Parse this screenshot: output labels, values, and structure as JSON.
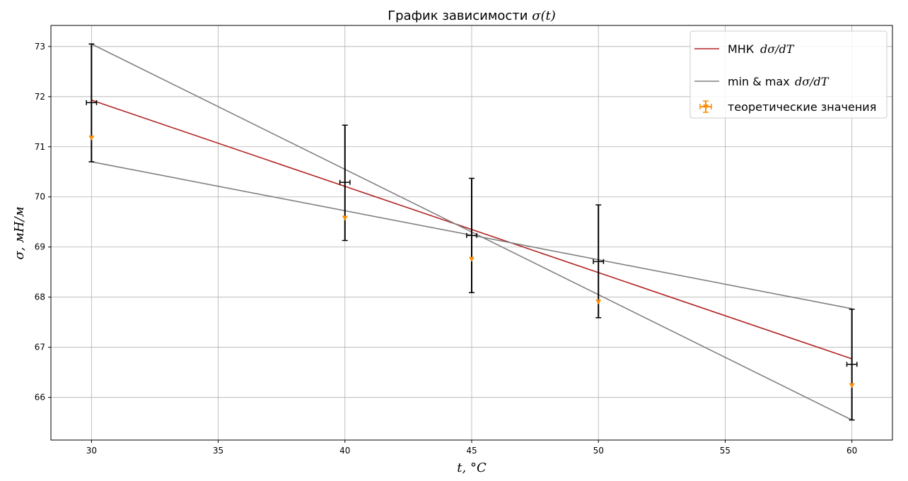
{
  "chart_data": {
    "type": "scatter",
    "title_prefix": "График зависимости ",
    "title_math": "σ(t)",
    "xlabel": "t, °C",
    "ylabel": "σ, мН/м",
    "xlim": [
      28.4,
      61.6
    ],
    "ylim": [
      65.15,
      73.42
    ],
    "x_ticks": [
      30,
      35,
      40,
      45,
      50,
      55,
      60
    ],
    "y_ticks": [
      66,
      67,
      68,
      69,
      70,
      71,
      72,
      73
    ],
    "grid": true,
    "legend_position": "top-right",
    "colors": {
      "mnk": "#b22222",
      "minmax": "#808080",
      "theory": "#ff8c00",
      "experimental": "#000000",
      "grid": "#b0b0b0"
    },
    "lines": [
      {
        "legend": "МНК",
        "legend_frac": "dσ/dT",
        "color": "#b22222",
        "points": [
          [
            30,
            71.93
          ],
          [
            60,
            66.77
          ]
        ]
      },
      {
        "legend": "min & max",
        "legend_frac": "dσ/dT",
        "color": "#808080",
        "points": [
          [
            30,
            73.05
          ],
          [
            60,
            65.55
          ]
        ]
      },
      {
        "legend": null,
        "color": "#808080",
        "points": [
          [
            30,
            70.7
          ],
          [
            60,
            67.77
          ]
        ]
      }
    ],
    "experimental": [
      {
        "x": 30,
        "y": 71.88,
        "yerr": [
          70.7,
          73.05
        ],
        "xerr": 0.2
      },
      {
        "x": 40,
        "y": 70.29,
        "yerr": [
          69.13,
          71.43
        ],
        "xerr": 0.2
      },
      {
        "x": 45,
        "y": 69.23,
        "yerr": [
          68.09,
          70.37
        ],
        "xerr": 0.2
      },
      {
        "x": 50,
        "y": 68.71,
        "yerr": [
          67.59,
          69.84
        ],
        "xerr": 0.2
      },
      {
        "x": 60,
        "y": 66.66,
        "yerr": [
          65.55,
          67.76
        ],
        "xerr": 0.2
      }
    ],
    "theoretical": {
      "legend": "теоретические значения",
      "points": [
        [
          30,
          71.18
        ],
        [
          40,
          69.58
        ],
        [
          45,
          68.76
        ],
        [
          50,
          67.91
        ],
        [
          60,
          66.24
        ]
      ]
    }
  }
}
